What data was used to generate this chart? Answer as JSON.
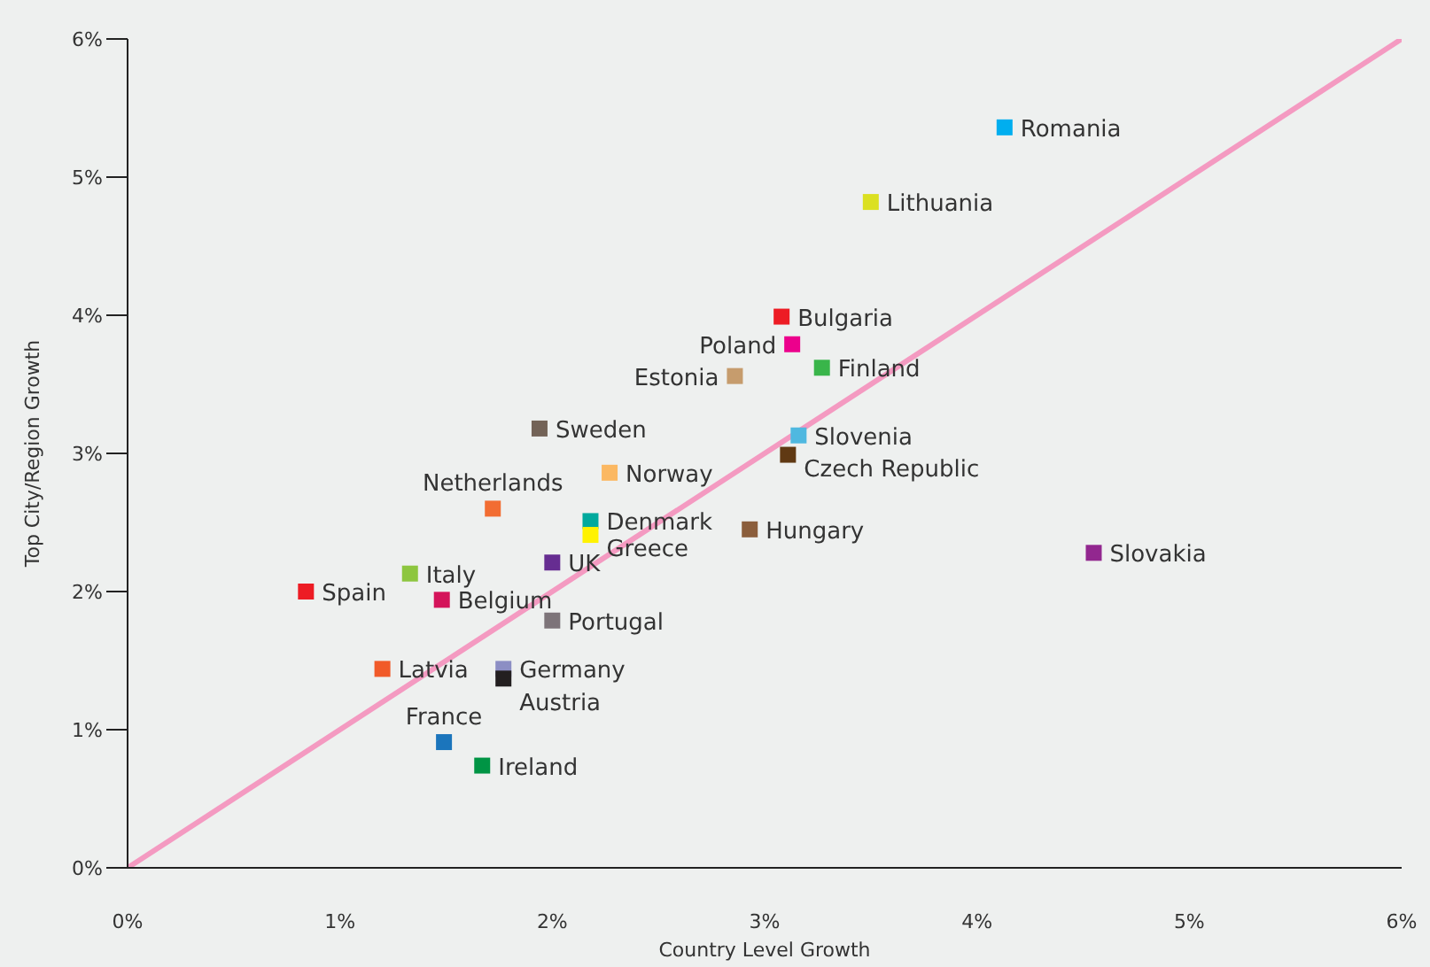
{
  "chart_data": {
    "type": "scatter",
    "xlabel": "Country Level Growth",
    "ylabel": "Top City/Region Growth",
    "xlim": [
      0,
      6
    ],
    "ylim": [
      0,
      6
    ],
    "xticks": [
      {
        "value": 0,
        "label": "0%"
      },
      {
        "value": 1,
        "label": "1%"
      },
      {
        "value": 2,
        "label": "2%"
      },
      {
        "value": 3,
        "label": "3%"
      },
      {
        "value": 4,
        "label": "4%"
      },
      {
        "value": 5,
        "label": "5%"
      },
      {
        "value": 6,
        "label": "6%"
      }
    ],
    "yticks": [
      {
        "value": 0,
        "label": "0%"
      },
      {
        "value": 1,
        "label": "1%"
      },
      {
        "value": 2,
        "label": "2%"
      },
      {
        "value": 3,
        "label": "3%"
      },
      {
        "value": 4,
        "label": "4%"
      },
      {
        "value": 5,
        "label": "5%"
      },
      {
        "value": 6,
        "label": "6%"
      }
    ],
    "grid": false,
    "legend": false,
    "marker": "square",
    "series": [
      {
        "type": "line",
        "color": "#f49ac1",
        "marker": "none",
        "x": [
          0,
          6
        ],
        "values": [
          0,
          6
        ]
      },
      {
        "name": "Romania",
        "color": "#00aeef",
        "x": [
          4.13
        ],
        "values": [
          5.36
        ]
      },
      {
        "name": "Lithuania",
        "color": "#dbe021",
        "x": [
          3.5
        ],
        "values": [
          4.82
        ]
      },
      {
        "name": "Bulgaria",
        "color": "#ed1c24",
        "x": [
          3.08
        ],
        "values": [
          3.99
        ]
      },
      {
        "name": "Poland",
        "color": "#ec008c",
        "x": [
          3.13
        ],
        "values": [
          3.79
        ]
      },
      {
        "name": "Finland",
        "color": "#39b54a",
        "x": [
          3.27
        ],
        "values": [
          3.62
        ]
      },
      {
        "name": "Estonia",
        "color": "#c69c6d",
        "x": [
          2.86
        ],
        "values": [
          3.56
        ]
      },
      {
        "name": "Slovenia",
        "color": "#4fb8e0",
        "x": [
          3.16
        ],
        "values": [
          3.13
        ]
      },
      {
        "name": "Czech Republic",
        "color": "#603913",
        "x": [
          3.11
        ],
        "values": [
          2.99
        ]
      },
      {
        "name": "Sweden",
        "color": "#736357",
        "x": [
          1.94
        ],
        "values": [
          3.18
        ]
      },
      {
        "name": "Norway",
        "color": "#fbb862",
        "x": [
          2.27
        ],
        "values": [
          2.86
        ]
      },
      {
        "name": "Netherlands",
        "color": "#f26d32",
        "x": [
          1.72
        ],
        "values": [
          2.6
        ]
      },
      {
        "name": "Denmark",
        "color": "#00a99d",
        "x": [
          2.18
        ],
        "values": [
          2.51
        ]
      },
      {
        "name": "Greece",
        "color": "#fff200",
        "x": [
          2.18
        ],
        "values": [
          2.41
        ]
      },
      {
        "name": "Hungary",
        "color": "#8b5e3c",
        "x": [
          2.93
        ],
        "values": [
          2.45
        ]
      },
      {
        "name": "UK",
        "color": "#662d91",
        "x": [
          2.0
        ],
        "values": [
          2.21
        ]
      },
      {
        "name": "Slovakia",
        "color": "#92278f",
        "x": [
          4.55
        ],
        "values": [
          2.28
        ]
      },
      {
        "name": "Spain",
        "color": "#ed1c24",
        "x": [
          0.84
        ],
        "values": [
          2.0
        ]
      },
      {
        "name": "Italy",
        "color": "#8dc63f",
        "x": [
          1.33
        ],
        "values": [
          2.13
        ]
      },
      {
        "name": "Belgium",
        "color": "#d4145a",
        "x": [
          1.48
        ],
        "values": [
          1.94
        ]
      },
      {
        "name": "Portugal",
        "color": "#7d7479",
        "x": [
          2.0
        ],
        "values": [
          1.79
        ]
      },
      {
        "name": "Latvia",
        "color": "#f15a29",
        "x": [
          1.2
        ],
        "values": [
          1.44
        ]
      },
      {
        "name": "Germany",
        "color": "#8c8ec4",
        "x": [
          1.77
        ],
        "values": [
          1.44
        ]
      },
      {
        "name": "Austria",
        "color": "#231f20",
        "x": [
          1.77
        ],
        "values": [
          1.37
        ]
      },
      {
        "name": "France",
        "color": "#1b75bc",
        "x": [
          1.49
        ],
        "values": [
          0.91
        ]
      },
      {
        "name": "Ireland",
        "color": "#009444",
        "x": [
          1.67
        ],
        "values": [
          0.74
        ]
      }
    ]
  }
}
